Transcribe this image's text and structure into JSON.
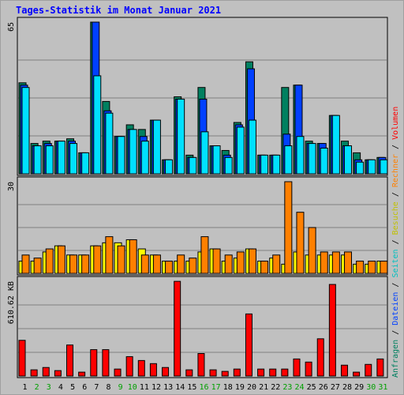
{
  "title": "Tages-Statistik im Monat Januar 2021",
  "colors": {
    "anfragen": "#008060",
    "dateien": "#0040ff",
    "seiten": "#00e0ff",
    "besuche": "#ffff00",
    "rechner": "#ff8000",
    "volumen": "#ff0000",
    "weekend": "#00a000",
    "weekday": "#000000"
  },
  "side_legend": [
    {
      "text": "Anfragen",
      "color": "#008060"
    },
    {
      "text": "Dateien",
      "color": "#0040ff"
    },
    {
      "text": "Seiten",
      "color": "#00c0c0"
    },
    {
      "text": "Besuche",
      "color": "#c0c000"
    },
    {
      "text": "Rechner",
      "color": "#ff8000"
    },
    {
      "text": "Volumen",
      "color": "#ff0000"
    }
  ],
  "chart_data": [
    {
      "type": "bar",
      "panel": "requests",
      "max_label": "65",
      "ylim": [
        0,
        65
      ],
      "categories": [
        "1",
        "2",
        "3",
        "4",
        "5",
        "6",
        "7",
        "8",
        "9",
        "10",
        "11",
        "12",
        "13",
        "14",
        "15",
        "16",
        "17",
        "18",
        "19",
        "20",
        "21",
        "22",
        "23",
        "24",
        "25",
        "26",
        "27",
        "28",
        "29",
        "30",
        "31"
      ],
      "series": [
        {
          "name": "Anfragen",
          "values": [
            39,
            13,
            14,
            14,
            15,
            9,
            65,
            31,
            16,
            21,
            19,
            23,
            6,
            33,
            8,
            37,
            12,
            10,
            22,
            48,
            8,
            8,
            37,
            38,
            14,
            13,
            25,
            14,
            9,
            6,
            7
          ]
        },
        {
          "name": "Dateien",
          "values": [
            38,
            12,
            13,
            14,
            14,
            9,
            65,
            27,
            16,
            19,
            16,
            23,
            6,
            32,
            7,
            32,
            12,
            8,
            21,
            45,
            8,
            8,
            17,
            38,
            13,
            13,
            25,
            12,
            6,
            6,
            7
          ]
        },
        {
          "name": "Seiten",
          "values": [
            37,
            12,
            12,
            14,
            13,
            9,
            42,
            26,
            16,
            19,
            14,
            23,
            6,
            32,
            7,
            18,
            12,
            7,
            20,
            23,
            8,
            8,
            12,
            16,
            13,
            11,
            25,
            12,
            5,
            6,
            6
          ]
        }
      ]
    },
    {
      "type": "bar",
      "panel": "visits",
      "max_label": "30",
      "ylim": [
        0,
        30
      ],
      "categories": [
        "1",
        "2",
        "3",
        "4",
        "5",
        "6",
        "7",
        "8",
        "9",
        "10",
        "11",
        "12",
        "13",
        "14",
        "15",
        "16",
        "17",
        "18",
        "19",
        "20",
        "21",
        "22",
        "23",
        "24",
        "25",
        "26",
        "27",
        "28",
        "29",
        "30",
        "31"
      ],
      "series": [
        {
          "name": "Besuche",
          "values": [
            4,
            4,
            7,
            9,
            6,
            6,
            9,
            10,
            10,
            11,
            8,
            6,
            4,
            4,
            4,
            7,
            8,
            4,
            5,
            8,
            4,
            5,
            3,
            7,
            6,
            6,
            6,
            6,
            3,
            3,
            4
          ]
        },
        {
          "name": "Rechner",
          "values": [
            6,
            5,
            8,
            9,
            6,
            6,
            9,
            12,
            9,
            11,
            6,
            6,
            4,
            6,
            5,
            12,
            8,
            6,
            7,
            8,
            4,
            6,
            30,
            20,
            15,
            7,
            7,
            7,
            4,
            4,
            4
          ]
        }
      ]
    },
    {
      "type": "bar",
      "panel": "volume",
      "max_label": "610.62 KB",
      "ylim": [
        0,
        610.62
      ],
      "categories": [
        "1",
        "2",
        "3",
        "4",
        "5",
        "6",
        "7",
        "8",
        "9",
        "10",
        "11",
        "12",
        "13",
        "14",
        "15",
        "16",
        "17",
        "18",
        "19",
        "20",
        "21",
        "22",
        "23",
        "24",
        "25",
        "26",
        "27",
        "28",
        "29",
        "30",
        "31"
      ],
      "series": [
        {
          "name": "Volumen",
          "values": [
            230,
            40,
            55,
            35,
            200,
            25,
            170,
            170,
            45,
            125,
            100,
            80,
            55,
            610,
            40,
            145,
            40,
            30,
            45,
            400,
            45,
            45,
            45,
            110,
            90,
            240,
            590,
            70,
            25,
            75,
            110
          ]
        }
      ]
    }
  ]
}
